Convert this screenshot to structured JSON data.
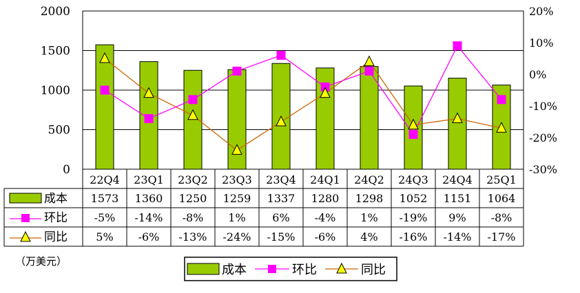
{
  "chart_data": {
    "type": "bar+line",
    "categories": [
      "22Q4",
      "23Q1",
      "23Q2",
      "23Q3",
      "23Q4",
      "24Q1",
      "24Q2",
      "24Q3",
      "24Q4",
      "25Q1"
    ],
    "series": [
      {
        "name": "成本",
        "kind": "bar",
        "axis": "left",
        "color": "#99cc00",
        "values": [
          1573,
          1360,
          1250,
          1259,
          1337,
          1280,
          1298,
          1052,
          1151,
          1064
        ],
        "labels": [
          "1573",
          "1360",
          "1250",
          "1259",
          "1337",
          "1280",
          "1298",
          "1052",
          "1151",
          "1064"
        ]
      },
      {
        "name": "环比",
        "kind": "line",
        "axis": "right",
        "color": "#ff00ff",
        "marker": "square",
        "values": [
          -5,
          -14,
          -8,
          1,
          6,
          -4,
          1,
          -19,
          9,
          -8
        ],
        "labels": [
          "-5%",
          "-14%",
          "-8%",
          "1%",
          "6%",
          "-4%",
          "1%",
          "-19%",
          "9%",
          "-8%"
        ]
      },
      {
        "name": "同比",
        "kind": "line",
        "axis": "right",
        "color": "#cc6600",
        "marker": "triangle",
        "marker_fill": "#ffff00",
        "values": [
          5,
          -6,
          -13,
          -24,
          -15,
          -6,
          4,
          -16,
          -14,
          -17
        ],
        "labels": [
          "5%",
          "-6%",
          "-13%",
          "-24%",
          "-15%",
          "-6%",
          "4%",
          "-16%",
          "-14%",
          "-17%"
        ]
      }
    ],
    "y_left": {
      "min": 0,
      "max": 2000,
      "ticks": [
        "0",
        "500",
        "1000",
        "1500",
        "2000"
      ]
    },
    "y_right": {
      "min": -30,
      "max": 20,
      "ticks": [
        "-30%",
        "-20%",
        "-10%",
        "0%",
        "10%",
        "20%"
      ]
    },
    "grid": true,
    "data_table": true,
    "legend_position": "bottom",
    "unit_note": "（万美元）"
  }
}
